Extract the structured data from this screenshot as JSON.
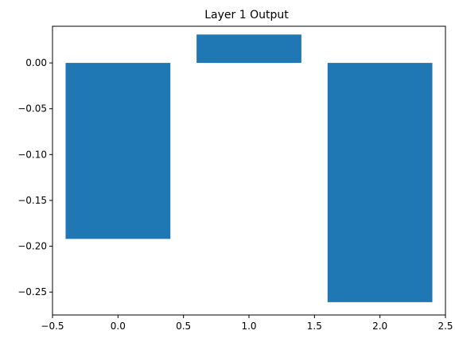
{
  "chart_data": {
    "type": "bar",
    "title": "Layer 1 Output",
    "xlabel": "",
    "ylabel": "",
    "x": [
      0,
      1,
      2
    ],
    "values": [
      -0.192,
      0.031,
      -0.261
    ],
    "bar_width": 0.8,
    "xlim": [
      -0.5,
      2.5
    ],
    "ylim": [
      -0.275,
      0.04
    ],
    "xticks": [
      -0.5,
      0.0,
      0.5,
      1.0,
      1.5,
      2.0,
      2.5
    ],
    "xtick_labels": [
      "−0.5",
      "0.0",
      "0.5",
      "1.0",
      "1.5",
      "2.0",
      "2.5"
    ],
    "yticks": [
      0.0,
      -0.05,
      -0.1,
      -0.15,
      -0.2,
      -0.25
    ],
    "ytick_labels": [
      "0.00",
      "−0.05",
      "−0.10",
      "−0.15",
      "−0.20",
      "−0.25"
    ],
    "grid": false,
    "bar_color": "#1f77b4"
  }
}
